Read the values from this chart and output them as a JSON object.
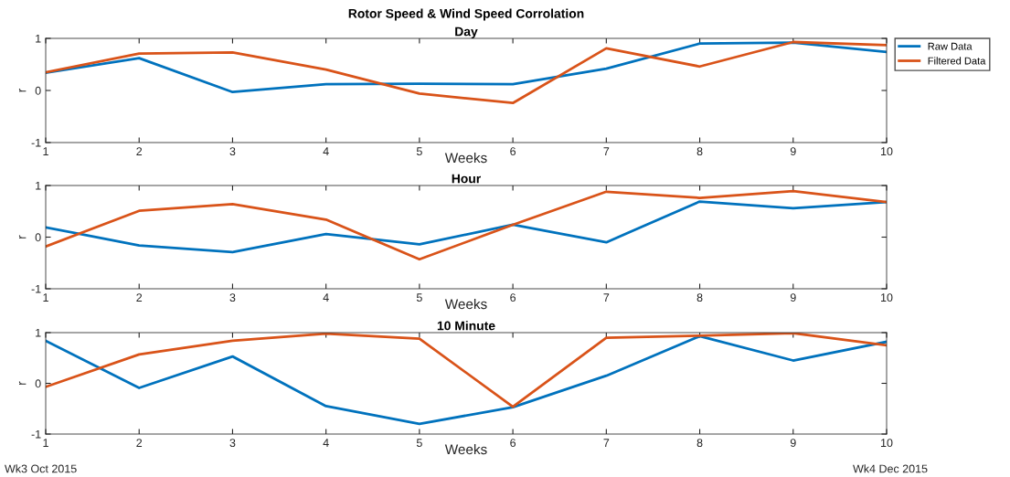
{
  "chart_data": [
    {
      "type": "line",
      "title": "Day",
      "xlabel": "Weeks",
      "ylabel": "r",
      "x": [
        1,
        2,
        3,
        4,
        5,
        6,
        7,
        8,
        9,
        10
      ],
      "xlim": [
        1,
        10
      ],
      "xticks": [
        1,
        2,
        3,
        4,
        5,
        6,
        7,
        8,
        9,
        10
      ],
      "ylim": [
        -1,
        1
      ],
      "yticks": [
        -1,
        0,
        1
      ],
      "grid": false,
      "legend": "top right",
      "marker": "none",
      "line_style": "solid",
      "annotations": [
        "Rotor Speed & Wind Speed Corrolation"
      ],
      "series": [
        {
          "name": "Raw Data",
          "color": "#0072bd",
          "values": [
            0.34,
            0.62,
            -0.03,
            0.12,
            0.13,
            0.12,
            0.42,
            0.9,
            0.92,
            0.74
          ]
        },
        {
          "name": "Filtered Data",
          "color": "#d95319",
          "values": [
            0.35,
            0.71,
            0.73,
            0.4,
            -0.06,
            -0.24,
            0.81,
            0.46,
            0.93,
            0.87
          ]
        }
      ]
    },
    {
      "type": "line",
      "title": "Hour",
      "xlabel": "Weeks",
      "ylabel": "r",
      "x": [
        1,
        2,
        3,
        4,
        5,
        6,
        7,
        8,
        9,
        10
      ],
      "xlim": [
        1,
        10
      ],
      "xticks": [
        1,
        2,
        3,
        4,
        5,
        6,
        7,
        8,
        9,
        10
      ],
      "ylim": [
        -1,
        1
      ],
      "yticks": [
        -1,
        0,
        1
      ],
      "grid": false,
      "marker": "none",
      "line_style": "solid",
      "series": [
        {
          "color": "#0072bd",
          "values": [
            0.19,
            -0.16,
            -0.29,
            0.06,
            -0.14,
            0.24,
            -0.1,
            0.69,
            0.56,
            0.68
          ]
        },
        {
          "color": "#d95319",
          "values": [
            -0.18,
            0.51,
            0.64,
            0.34,
            -0.43,
            0.24,
            0.88,
            0.76,
            0.89,
            0.68
          ]
        }
      ]
    },
    {
      "type": "line",
      "title": "10 Minute",
      "xlabel": "Weeks",
      "ylabel": "r",
      "x": [
        1,
        2,
        3,
        4,
        5,
        6,
        7,
        8,
        9,
        10
      ],
      "xlim": [
        1,
        10
      ],
      "xticks": [
        1,
        2,
        3,
        4,
        5,
        6,
        7,
        8,
        9,
        10
      ],
      "ylim": [
        -1,
        1
      ],
      "yticks": [
        -1,
        0,
        1
      ],
      "grid": false,
      "marker": "none",
      "line_style": "solid",
      "annotations": [
        "Wk3 Oct 2015",
        "Wk4 Dec 2015"
      ],
      "series": [
        {
          "color": "#0072bd",
          "values": [
            0.84,
            -0.09,
            0.53,
            -0.45,
            -0.8,
            -0.47,
            0.15,
            0.93,
            0.45,
            0.82
          ]
        },
        {
          "color": "#d95319",
          "values": [
            -0.07,
            0.57,
            0.84,
            0.98,
            0.88,
            -0.46,
            0.9,
            0.94,
            0.99,
            0.75
          ]
        }
      ]
    }
  ]
}
